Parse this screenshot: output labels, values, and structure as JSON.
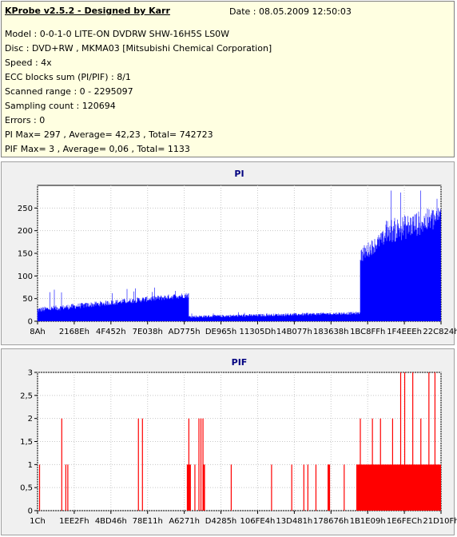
{
  "header": {
    "title": "KProbe v2.5.2 - Designed by Karr",
    "date": "Date : 08.05.2009 12:50:03"
  },
  "info_lines": [
    "Model : 0-0-1-0 LITE-ON DVDRW SHW-16H5S  LS0W",
    "Disc : DVD+RW , MKMA03 [Mitsubishi Chemical Corporation]",
    "Speed : 4x",
    "ECC blocks sum (PI/PIF) : 8/1",
    "Scanned range : 0 - 2295097",
    "Sampling count : 120694",
    "Errors : 0",
    "PI Max= 297 , Average= 42,23 , Total= 742723",
    "PIF Max= 3 , Average= 0,06 , Total= 1133"
  ],
  "chart_data": [
    {
      "type": "bar",
      "title": "PI",
      "color": "#0000ff",
      "ylim": [
        0,
        300
      ],
      "yticks": [
        0,
        50,
        100,
        150,
        200,
        250
      ],
      "xticks": [
        "8Ah",
        "2168Eh",
        "4F452h",
        "7E038h",
        "AD775h",
        "DE965h",
        "11305Dh",
        "14B077h",
        "183638h",
        "1BC8FFh",
        "1F4EEEh",
        "22C824h"
      ],
      "grid": true,
      "segments": [
        {
          "from": 0.0,
          "to": 0.375,
          "start": 25,
          "end": 58,
          "spread": 12,
          "peak": 75
        },
        {
          "from": 0.375,
          "to": 0.8,
          "start": 10,
          "end": 18,
          "spread": 6,
          "peak": 20
        },
        {
          "from": 0.8,
          "to": 0.86,
          "start": 145,
          "end": 185,
          "spread": 35
        },
        {
          "from": 0.86,
          "to": 1.0,
          "start": 195,
          "end": 230,
          "spread": 55,
          "peak": 297
        }
      ]
    },
    {
      "type": "bar",
      "title": "PIF",
      "color": "#ff0000",
      "ylim": [
        0,
        3
      ],
      "yticks": [
        0,
        0.5,
        1,
        1.5,
        2,
        2.5,
        3
      ],
      "yticklabels": [
        "0",
        "0,5",
        "1",
        "1,5",
        "2",
        "2,5",
        "3"
      ],
      "xticks": [
        "1Ch",
        "1EE2Fh",
        "4BD46h",
        "78E11h",
        "A6271h",
        "D4285h",
        "106FE4h",
        "13D481h",
        "178676h",
        "1B1E09h",
        "1E6FECh",
        "21D10Fh"
      ],
      "grid": true,
      "spikes": [
        [
          0.005,
          1
        ],
        [
          0.06,
          2
        ],
        [
          0.07,
          1
        ],
        [
          0.075,
          1
        ],
        [
          0.25,
          2
        ],
        [
          0.26,
          2
        ],
        [
          0.375,
          2
        ],
        [
          0.39,
          1
        ],
        [
          0.4,
          2
        ],
        [
          0.405,
          2
        ],
        [
          0.41,
          2
        ],
        [
          0.48,
          1
        ],
        [
          0.58,
          1
        ],
        [
          0.63,
          1
        ],
        [
          0.66,
          1
        ],
        [
          0.67,
          1
        ],
        [
          0.69,
          1
        ],
        [
          0.72,
          1
        ],
        [
          0.76,
          1
        ],
        [
          0.8,
          2
        ],
        [
          0.83,
          2
        ],
        [
          0.85,
          2
        ],
        [
          0.88,
          2
        ],
        [
          0.9,
          3
        ],
        [
          0.91,
          3
        ],
        [
          0.93,
          3
        ],
        [
          0.95,
          2
        ],
        [
          0.97,
          3
        ],
        [
          0.985,
          3
        ]
      ],
      "blocks": [
        {
          "from": 0.37,
          "to": 0.38,
          "value": 1
        },
        {
          "from": 0.41,
          "to": 0.415,
          "value": 1
        },
        {
          "from": 0.72,
          "to": 0.725,
          "value": 1
        },
        {
          "from": 0.79,
          "to": 1.0,
          "value": 1
        }
      ]
    }
  ]
}
